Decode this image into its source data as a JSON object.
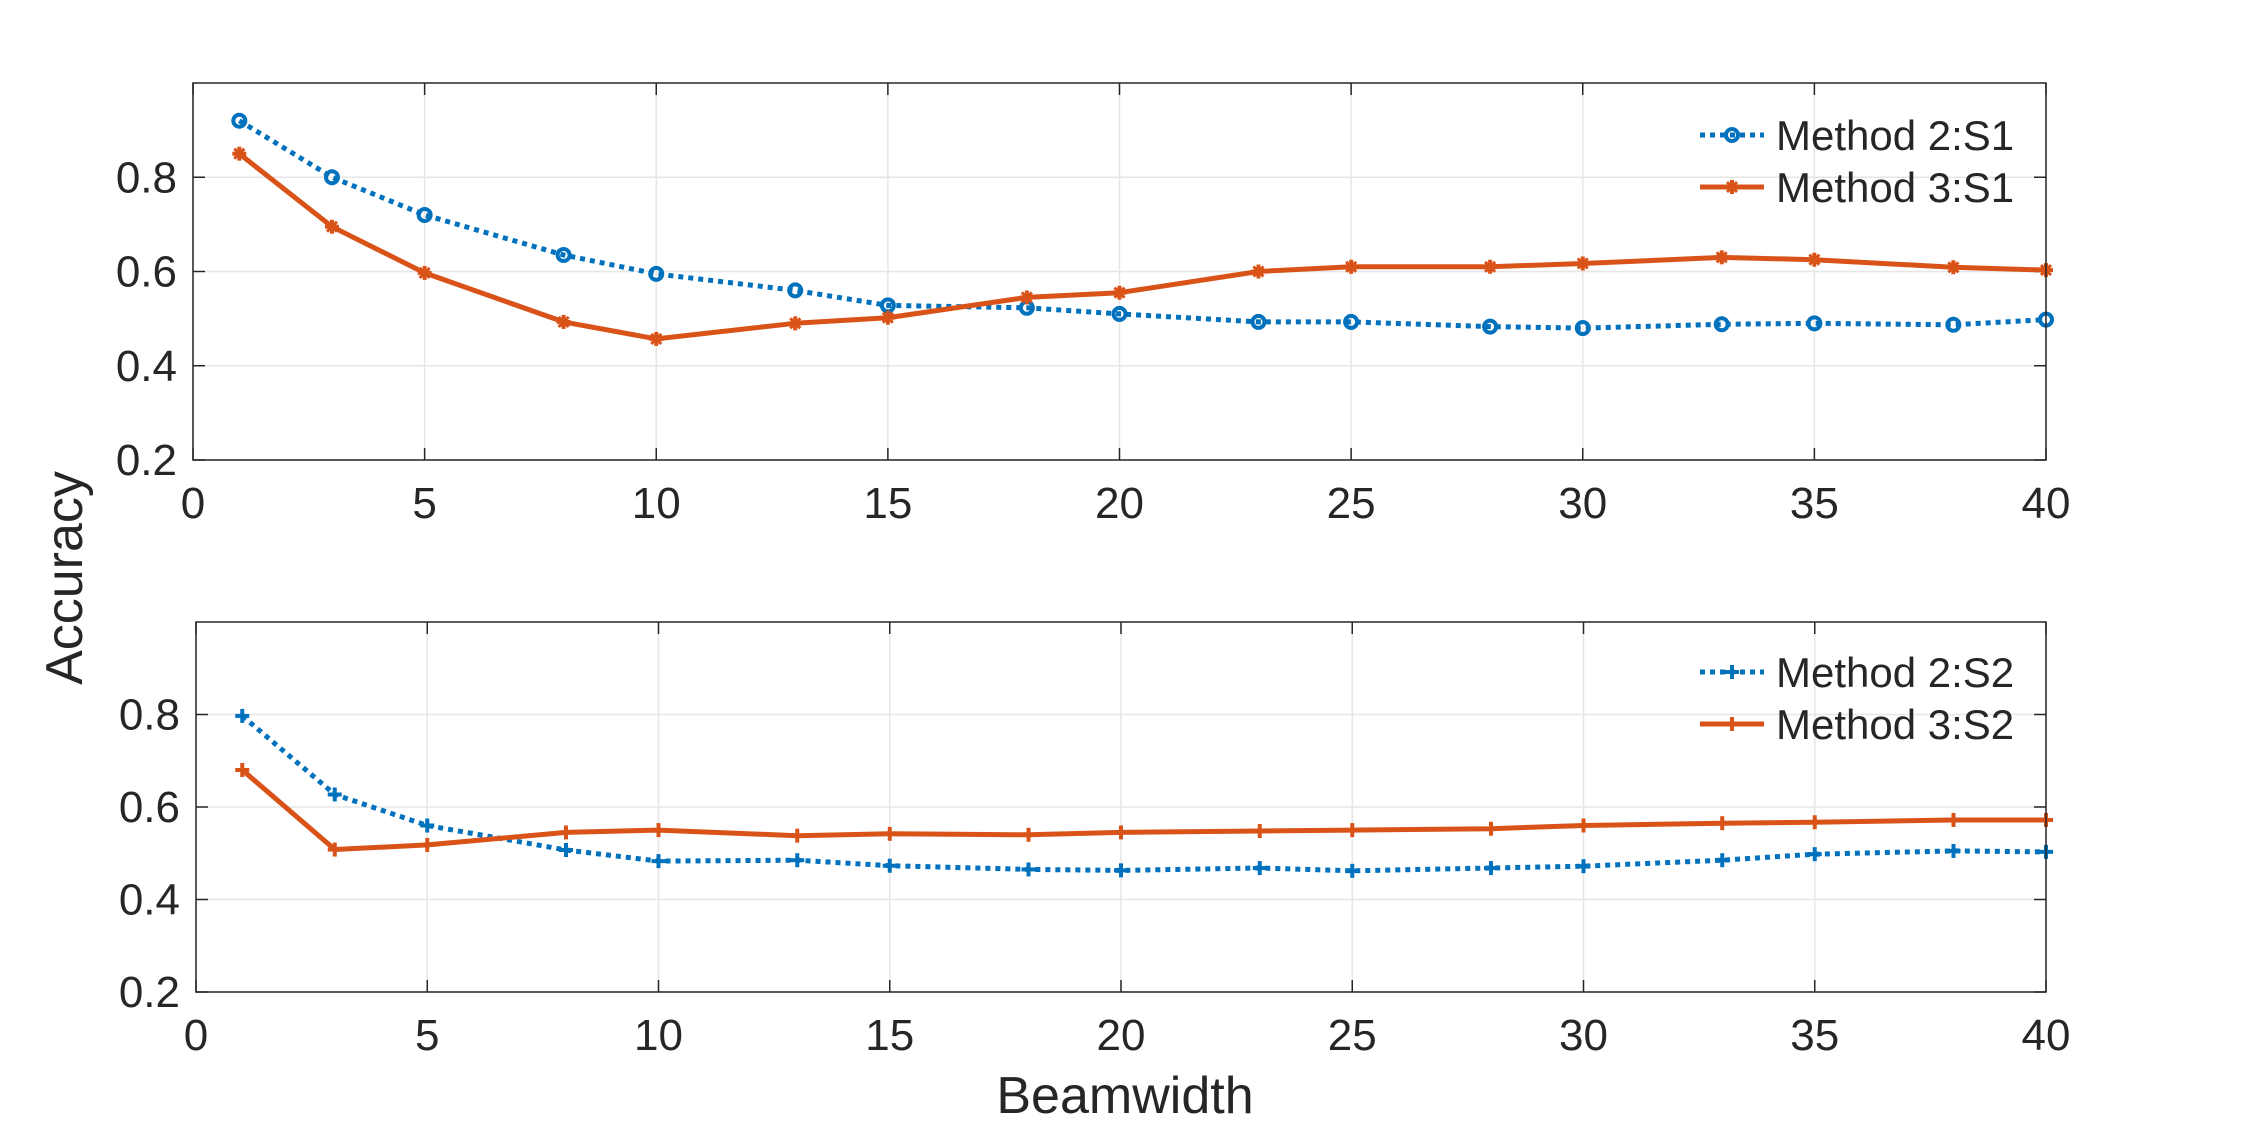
{
  "figure": {
    "shared_ylabel": "Accuracy",
    "shared_xlabel": "Beamwidth"
  },
  "chart_data": [
    {
      "type": "line",
      "title": "",
      "xlabel": "",
      "ylabel": "Accuracy",
      "xlim": [
        0,
        40
      ],
      "ylim": [
        0.2,
        1.0
      ],
      "xticks": [
        0,
        5,
        10,
        15,
        20,
        25,
        30,
        35,
        40
      ],
      "yticks": [
        0.2,
        0.4,
        0.6,
        0.8
      ],
      "grid": true,
      "legend_position": "top-right",
      "series": [
        {
          "name": "Method 2:S1",
          "color": "#0072BD",
          "line_style": "dotted",
          "marker": "circle",
          "x": [
            1,
            3,
            5,
            8,
            10,
            13,
            15,
            18,
            20,
            23,
            25,
            28,
            30,
            33,
            35,
            38,
            40
          ],
          "y": [
            0.92,
            0.8,
            0.72,
            0.635,
            0.595,
            0.56,
            0.528,
            0.523,
            0.51,
            0.493,
            0.493,
            0.483,
            0.48,
            0.488,
            0.49,
            0.487,
            0.498
          ]
        },
        {
          "name": "Method 3:S1",
          "color": "#D95319",
          "line_style": "solid",
          "marker": "asterisk",
          "x": [
            1,
            3,
            5,
            8,
            10,
            13,
            15,
            18,
            20,
            23,
            25,
            28,
            30,
            33,
            35,
            38,
            40
          ],
          "y": [
            0.85,
            0.695,
            0.597,
            0.493,
            0.457,
            0.49,
            0.502,
            0.545,
            0.555,
            0.6,
            0.61,
            0.61,
            0.617,
            0.63,
            0.625,
            0.609,
            0.603
          ]
        }
      ]
    },
    {
      "type": "line",
      "title": "",
      "xlabel": "Beamwidth",
      "ylabel": "Accuracy",
      "xlim": [
        0,
        40
      ],
      "ylim": [
        0.2,
        1.0
      ],
      "xticks": [
        0,
        5,
        10,
        15,
        20,
        25,
        30,
        35,
        40
      ],
      "yticks": [
        0.2,
        0.4,
        0.6,
        0.8
      ],
      "grid": true,
      "legend_position": "top-right",
      "series": [
        {
          "name": "Method 2:S2",
          "color": "#0072BD",
          "line_style": "dotted",
          "marker": "plus",
          "x": [
            1,
            3,
            5,
            8,
            10,
            13,
            15,
            18,
            20,
            23,
            25,
            28,
            30,
            33,
            35,
            38,
            40
          ],
          "y": [
            0.797,
            0.627,
            0.56,
            0.507,
            0.483,
            0.485,
            0.473,
            0.465,
            0.463,
            0.468,
            0.462,
            0.468,
            0.472,
            0.485,
            0.498,
            0.505,
            0.503
          ]
        },
        {
          "name": "Method 3:S2",
          "color": "#D95319",
          "line_style": "solid",
          "marker": "plus",
          "x": [
            1,
            3,
            5,
            8,
            10,
            13,
            15,
            18,
            20,
            23,
            25,
            28,
            30,
            33,
            35,
            38,
            40
          ],
          "y": [
            0.68,
            0.508,
            0.518,
            0.545,
            0.55,
            0.538,
            0.542,
            0.54,
            0.545,
            0.548,
            0.55,
            0.553,
            0.56,
            0.565,
            0.567,
            0.572,
            0.572
          ]
        }
      ]
    }
  ]
}
